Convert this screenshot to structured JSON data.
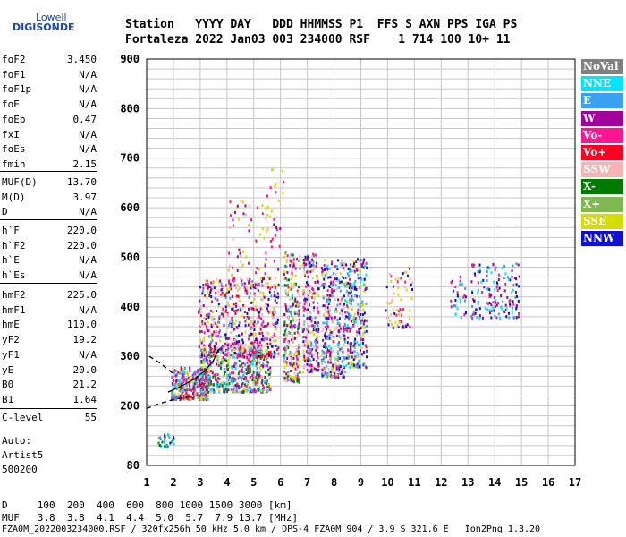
{
  "logo": {
    "top": "Lowell",
    "main": "DIGISONDE"
  },
  "header": {
    "line1": "Station   YYYY DAY   DDD HHMMSS P1  FFS S AXN PPS IGA PS",
    "line2": "Fortaleza 2022 Jan03 003 234000 RSF    1 714 100 10+ 11"
  },
  "params": {
    "group1": [
      {
        "name": "foF2",
        "value": "3.450"
      },
      {
        "name": "foF1",
        "value": "N/A"
      },
      {
        "name": "foF1p",
        "value": "N/A"
      },
      {
        "name": "foE",
        "value": "N/A"
      },
      {
        "name": "foEp",
        "value": "0.47"
      },
      {
        "name": "fxI",
        "value": "N/A"
      },
      {
        "name": "foEs",
        "value": "N/A"
      },
      {
        "name": "fmin",
        "value": "2.15"
      }
    ],
    "group2": [
      {
        "name": "MUF(D)",
        "value": "13.70"
      },
      {
        "name": "M(D)",
        "value": "3.97"
      },
      {
        "name": "D",
        "value": "N/A"
      }
    ],
    "group3": [
      {
        "name": "h`F",
        "value": "220.0"
      },
      {
        "name": "h`F2",
        "value": "220.0"
      },
      {
        "name": "h`E",
        "value": "N/A"
      },
      {
        "name": "h`Es",
        "value": "N/A"
      }
    ],
    "group4": [
      {
        "name": "hmF2",
        "value": "225.0"
      },
      {
        "name": "hmF1",
        "value": "N/A"
      },
      {
        "name": "hmE",
        "value": "110.0"
      },
      {
        "name": "yF2",
        "value": "19.2"
      },
      {
        "name": "yF1",
        "value": "N/A"
      },
      {
        "name": "yE",
        "value": "20.0"
      },
      {
        "name": "B0",
        "value": "21.2"
      },
      {
        "name": "B1",
        "value": "1.64"
      }
    ],
    "clevel": {
      "name": "C-level",
      "value": "55"
    },
    "auto": [
      "Auto:",
      "Artist5",
      "500200"
    ]
  },
  "legend": [
    {
      "label": "NoVal",
      "color": "#808080"
    },
    {
      "label": "NNE",
      "color": "#00e5ff"
    },
    {
      "label": "E",
      "color": "#3aa0f0"
    },
    {
      "label": "W",
      "color": "#a4009c"
    },
    {
      "label": "Vo-",
      "color": "#ff1493"
    },
    {
      "label": "Vo+",
      "color": "#ff0020"
    },
    {
      "label": "SSW",
      "color": "#f7b3b3"
    },
    {
      "label": "X-",
      "color": "#007a00"
    },
    {
      "label": "X+",
      "color": "#80b850"
    },
    {
      "label": "SSE",
      "color": "#d4dc00"
    },
    {
      "label": "NNW",
      "color": "#1010d0"
    }
  ],
  "bottom": {
    "d_line": "D     100  200  400  600  800 1000 1500 3000 [km]",
    "muf_line": "MUF   3.8  3.8  4.1  4.4  5.0  5.7  7.9 13.7 [MHz]",
    "file_line": "FZA0M_2022003234000.RSF / 320fx256h 50 kHz 5.0 km / DPS-4 FZA0M 904 / 3.9 S 321.6 E   Ion2Png 1.3.20"
  },
  "chart_data": {
    "type": "scatter",
    "xlim": [
      1,
      17
    ],
    "ylim": [
      80,
      900
    ],
    "x_ticks": [
      1,
      2,
      3,
      4,
      5,
      6,
      7,
      8,
      9,
      10,
      11,
      12,
      13,
      14,
      15,
      16,
      17
    ],
    "y_ticks": [
      80,
      200,
      300,
      400,
      500,
      600,
      700,
      800,
      900
    ],
    "grid": true,
    "legend_position": "right",
    "clusters": [
      {
        "x": [
          1.9,
          3.3
        ],
        "y": [
          215,
          280
        ],
        "n": 320,
        "colors": [
          "#ff1493",
          "#3aa0f0",
          "#00e5ff",
          "#d4dc00",
          "#ff0020",
          "#a4009c"
        ]
      },
      {
        "x": [
          3.0,
          5.6
        ],
        "y": [
          230,
          320
        ],
        "n": 520,
        "colors": [
          "#3aa0f0",
          "#00e5ff",
          "#a4009c",
          "#ff1493",
          "#d4dc00",
          "#007a00"
        ]
      },
      {
        "x": [
          2.9,
          5.9
        ],
        "y": [
          300,
          460
        ],
        "n": 560,
        "colors": [
          "#ff1493",
          "#a4009c",
          "#ff0020",
          "#3aa0f0",
          "#d4dc00",
          "#1010d0",
          "#f7b3b3"
        ]
      },
      {
        "x": [
          4.0,
          6.0
        ],
        "y": [
          440,
          620
        ],
        "n": 90,
        "colors": [
          "#ff1493",
          "#d4dc00",
          "#a4009c",
          "#f7b3b3"
        ]
      },
      {
        "x": [
          6.1,
          6.7
        ],
        "y": [
          250,
          520
        ],
        "n": 260,
        "colors": [
          "#ff1493",
          "#a4009c",
          "#3aa0f0",
          "#d4dc00",
          "#f7b3b3",
          "#007a00"
        ]
      },
      {
        "x": [
          6.8,
          7.4
        ],
        "y": [
          270,
          510
        ],
        "n": 240,
        "colors": [
          "#ff1493",
          "#a4009c",
          "#3aa0f0",
          "#d4dc00",
          "#f7b3b3",
          "#1010d0"
        ]
      },
      {
        "x": [
          7.5,
          8.4
        ],
        "y": [
          260,
          500
        ],
        "n": 330,
        "colors": [
          "#ff1493",
          "#a4009c",
          "#3aa0f0",
          "#d4dc00",
          "#1010d0",
          "#f7b3b3",
          "#00e5ff"
        ]
      },
      {
        "x": [
          8.4,
          9.2
        ],
        "y": [
          280,
          500
        ],
        "n": 260,
        "colors": [
          "#ff1493",
          "#a4009c",
          "#3aa0f0",
          "#1010d0",
          "#d4dc00",
          "#00e5ff"
        ]
      },
      {
        "x": [
          9.9,
          10.9
        ],
        "y": [
          360,
          480
        ],
        "n": 70,
        "colors": [
          "#d4dc00",
          "#ff1493",
          "#1010d0",
          "#f7b3b3"
        ]
      },
      {
        "x": [
          12.3,
          12.9
        ],
        "y": [
          380,
          470
        ],
        "n": 30,
        "colors": [
          "#00e5ff",
          "#ff1493",
          "#1010d0",
          "#3aa0f0"
        ]
      },
      {
        "x": [
          13.1,
          14.9
        ],
        "y": [
          380,
          490
        ],
        "n": 150,
        "colors": [
          "#1010d0",
          "#ff1493",
          "#a4009c",
          "#3aa0f0",
          "#00e5ff"
        ]
      },
      {
        "x": [
          1.4,
          2.0
        ],
        "y": [
          120,
          145
        ],
        "n": 30,
        "colors": [
          "#3aa0f0",
          "#00e5ff",
          "#007a00",
          "#1010d0"
        ]
      },
      {
        "x": [
          5.4,
          6.1
        ],
        "y": [
          580,
          680
        ],
        "n": 14,
        "colors": [
          "#d4dc00",
          "#ff1493"
        ]
      }
    ],
    "fitted_trace": {
      "x": [
        1.8,
        2.3,
        2.8,
        3.2,
        3.5,
        3.6,
        3.7
      ],
      "y": [
        228,
        240,
        255,
        272,
        292,
        305,
        315
      ]
    },
    "dashed_upper": {
      "x": [
        1.1,
        1.4,
        1.7,
        2.0
      ],
      "y": [
        300,
        290,
        278,
        265
      ]
    },
    "dashed_lower": {
      "x": [
        1.0,
        1.4,
        1.8,
        2.2,
        2.6,
        3.0
      ],
      "y": [
        195,
        203,
        210,
        215,
        218,
        222
      ]
    }
  }
}
